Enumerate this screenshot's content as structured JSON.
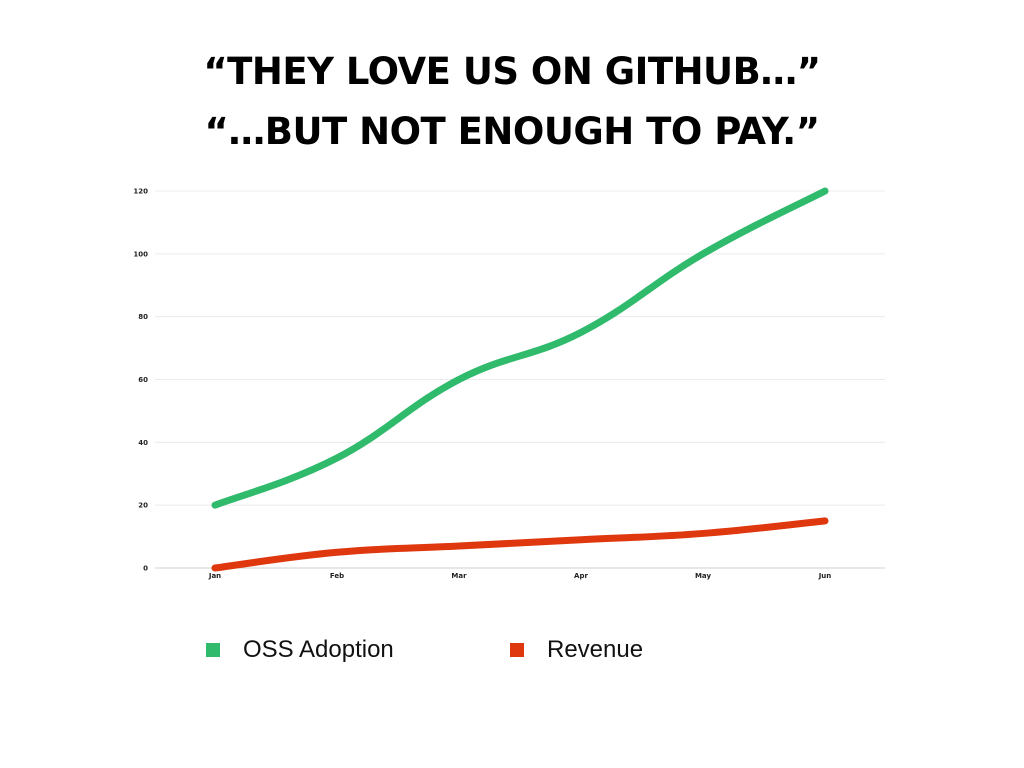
{
  "title_lines": [
    "“THEY LOVE US ON GITHUB…”",
    "“…BUT NOT ENOUGH TO PAY.”"
  ],
  "chart_data": {
    "type": "line",
    "categories": [
      "Jan",
      "Feb",
      "Mar",
      "Apr",
      "May",
      "Jun"
    ],
    "series": [
      {
        "name": "OSS Adoption",
        "values": [
          20,
          35,
          60,
          75,
          100,
          120
        ],
        "color": "#2fba6c"
      },
      {
        "name": "Revenue",
        "values": [
          0,
          5,
          7,
          9,
          11,
          15
        ],
        "color": "#e0380e"
      }
    ],
    "y_ticks": [
      0,
      20,
      40,
      60,
      80,
      100,
      120
    ],
    "ylim": [
      0,
      120
    ],
    "grid": true,
    "legend_position": "bottom",
    "smooth": true
  }
}
